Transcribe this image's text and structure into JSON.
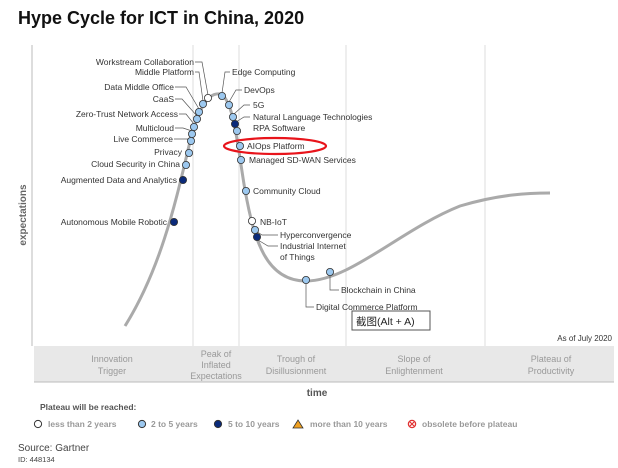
{
  "title": "Hype Cycle for ICT in China, 2020",
  "y_axis_label": "expectations",
  "x_axis_label": "time",
  "as_of": "As of July 2020",
  "tooltip": "截图(Alt + A)",
  "phases": [
    {
      "line1": "Innovation",
      "line2": "Trigger"
    },
    {
      "line1": "Peak of",
      "line2": "Inflated",
      "line3": "Expectations"
    },
    {
      "line1": "Trough of",
      "line2": "Disillusionment"
    },
    {
      "line1": "Slope of",
      "line2": "Enlightenment"
    },
    {
      "line1": "Plateau of",
      "line2": "Productivity"
    }
  ],
  "technologies": [
    {
      "name": "Workstream Collaboration",
      "plateau": "less than 2 years"
    },
    {
      "name": "Middle Platform",
      "plateau": "2 to 5 years"
    },
    {
      "name": "Data Middle Office",
      "plateau": "2 to 5 years"
    },
    {
      "name": "CaaS",
      "plateau": "2 to 5 years"
    },
    {
      "name": "Zero-Trust Network Access",
      "plateau": "2 to 5 years"
    },
    {
      "name": "Multicloud",
      "plateau": "2 to 5 years"
    },
    {
      "name": "Live Commerce",
      "plateau": "2 to 5 years"
    },
    {
      "name": "Privacy",
      "plateau": "2 to 5 years"
    },
    {
      "name": "Cloud Security in China",
      "plateau": "2 to 5 years"
    },
    {
      "name": "Augmented Data and Analytics",
      "plateau": "5 to 10 years"
    },
    {
      "name": "Autonomous Mobile Robotic",
      "plateau": "5 to 10 years"
    },
    {
      "name": "Edge Computing",
      "plateau": "2 to 5 years"
    },
    {
      "name": "DevOps",
      "plateau": "2 to 5 years"
    },
    {
      "name": "5G",
      "plateau": "2 to 5 years"
    },
    {
      "name": "Natural Language Technologies",
      "plateau": "5 to 10 years"
    },
    {
      "name": "RPA Software",
      "plateau": "2 to 5 years"
    },
    {
      "name": "AIOps Platform",
      "plateau": "2 to 5 years",
      "highlighted": true
    },
    {
      "name": "Managed SD-WAN Services",
      "plateau": "2 to 5 years"
    },
    {
      "name": "Community Cloud",
      "plateau": "2 to 5 years"
    },
    {
      "name": "NB-IoT",
      "plateau": "less than 2 years"
    },
    {
      "name": "Hyperconvergence",
      "plateau": "2 to 5 years"
    },
    {
      "name": "Industrial Internet",
      "name2": "of Things",
      "plateau": "5 to 10 years"
    },
    {
      "name": "Digital Commerce Platform",
      "plateau": "2 to 5 years"
    },
    {
      "name": "Blockchain in China",
      "plateau": "2 to 5 years"
    }
  ],
  "legend": {
    "title": "Plateau will be reached:",
    "items": [
      {
        "label": "less than 2 years",
        "icon": "white-circle",
        "color": "#ffffff"
      },
      {
        "label": "2 to 5 years",
        "icon": "light-blue-circle",
        "color": "#9cc8ef"
      },
      {
        "label": "5 to 10 years",
        "icon": "dark-blue-circle",
        "color": "#0a2a7a"
      },
      {
        "label": "more than 10 years",
        "icon": "orange-triangle",
        "color": "#f0a020"
      },
      {
        "label": "obsolete before plateau",
        "icon": "red-x-circle",
        "color": "#e03030"
      }
    ]
  },
  "source": "Source: Gartner",
  "id": "ID: 448134",
  "colors": {
    "highlight": "#e8141b",
    "curve": "#aaaaaa",
    "band": "#e6e6e6"
  }
}
